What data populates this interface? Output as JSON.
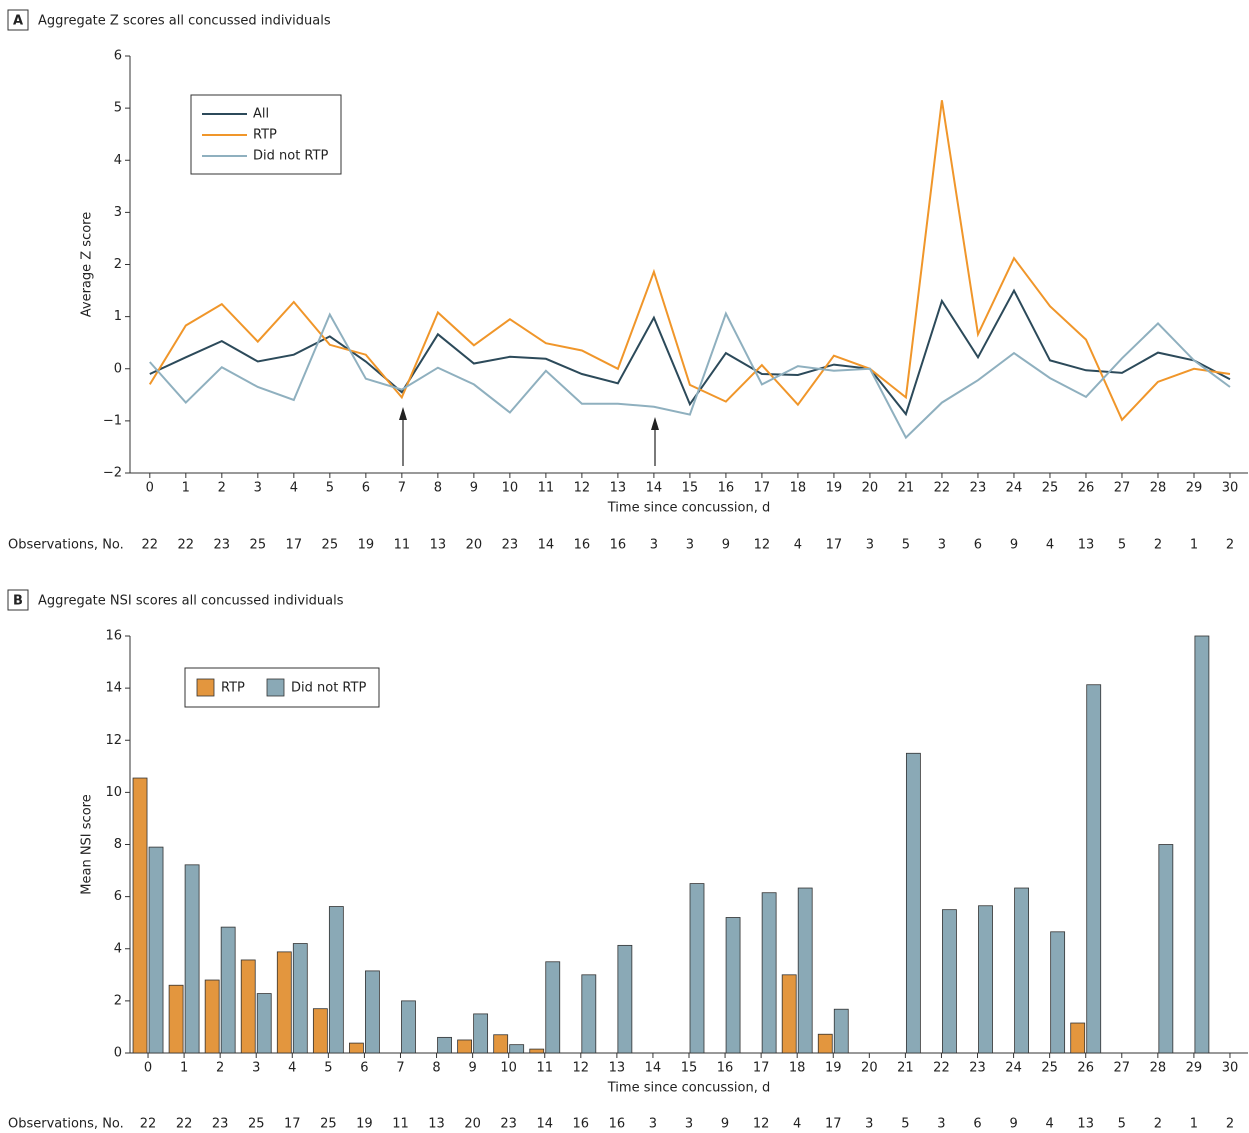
{
  "chart_data": [
    {
      "type": "line",
      "panel": "A",
      "title": "Aggregate Z scores all concussed individuals",
      "ylabel": "Average Z score",
      "xlabel": "Time since concussion, d",
      "x": [
        0,
        1,
        2,
        3,
        4,
        5,
        6,
        7,
        8,
        9,
        10,
        11,
        12,
        13,
        14,
        15,
        16,
        17,
        18,
        19,
        20,
        21,
        22,
        23,
        24,
        25,
        26,
        27,
        28,
        29,
        30
      ],
      "xlim": [
        -0.55,
        30.5
      ],
      "xticks": [
        0,
        1,
        2,
        3,
        4,
        5,
        6,
        7,
        8,
        9,
        10,
        11,
        12,
        13,
        14,
        15,
        16,
        17,
        18,
        19,
        20,
        21,
        22,
        23,
        24,
        25,
        26,
        27,
        28,
        29,
        30
      ],
      "ylim": [
        -2,
        6
      ],
      "yticks": [
        {
          "value": -2,
          "label": "−2"
        },
        {
          "value": -1,
          "label": "−1"
        },
        0,
        1,
        2,
        3,
        4,
        5,
        6
      ],
      "series": [
        {
          "name": "All",
          "color": "#2c4a5a",
          "values": [
            -0.1,
            0.22,
            0.53,
            0.14,
            0.27,
            0.62,
            0.14,
            -0.45,
            0.66,
            0.1,
            0.23,
            0.19,
            -0.1,
            -0.28,
            0.98,
            -0.68,
            0.3,
            -0.1,
            -0.12,
            0.08,
            0.0,
            -0.87,
            1.3,
            0.22,
            1.5,
            0.16,
            -0.03,
            -0.08,
            0.31,
            0.16,
            -0.2
          ]
        },
        {
          "name": "RTP",
          "color": "#f0962a",
          "values": [
            -0.3,
            0.83,
            1.24,
            0.52,
            1.28,
            0.46,
            0.27,
            -0.55,
            1.08,
            0.45,
            0.95,
            0.49,
            0.35,
            0.0,
            1.86,
            -0.31,
            -0.63,
            0.07,
            -0.69,
            0.25,
            0.0,
            -0.55,
            5.15,
            0.66,
            2.12,
            1.2,
            0.56,
            -0.98,
            -0.25,
            0.0,
            -0.1
          ]
        },
        {
          "name": "Did not RTP",
          "color": "#8fb0bf",
          "values": [
            0.13,
            -0.65,
            0.03,
            -0.35,
            -0.6,
            1.04,
            -0.19,
            -0.4,
            0.02,
            -0.3,
            -0.84,
            -0.04,
            -0.67,
            -0.67,
            -0.73,
            -0.88,
            1.06,
            -0.3,
            0.05,
            -0.04,
            0.0,
            -1.32,
            -0.65,
            -0.22,
            0.3,
            -0.18,
            -0.54,
            0.2,
            0.87,
            0.16,
            -0.35
          ]
        }
      ],
      "observations": {
        "label": "Observations, No.",
        "values": [
          22,
          22,
          23,
          25,
          17,
          25,
          19,
          11,
          13,
          20,
          23,
          14,
          16,
          16,
          3,
          3,
          9,
          12,
          4,
          17,
          3,
          5,
          3,
          6,
          9,
          4,
          13,
          5,
          2,
          1,
          2
        ]
      }
    },
    {
      "type": "bar",
      "panel": "B",
      "title": "Aggregate NSI scores all concussed individuals",
      "ylabel": "Mean NSI score",
      "xlabel": "Time since concussion, d",
      "categories": [
        0,
        1,
        2,
        3,
        4,
        5,
        6,
        7,
        8,
        9,
        10,
        11,
        12,
        13,
        14,
        15,
        16,
        17,
        18,
        19,
        20,
        21,
        22,
        23,
        24,
        25,
        26,
        27,
        28,
        29,
        30
      ],
      "ylim": [
        0,
        16
      ],
      "yticks": [
        0,
        2,
        4,
        6,
        8,
        10,
        12,
        14,
        16
      ],
      "series": [
        {
          "name": "RTP",
          "color": "#e3963e",
          "values": [
            10.55,
            2.6,
            2.8,
            3.57,
            3.88,
            1.7,
            0.38,
            0,
            0,
            0.5,
            0.7,
            0.15,
            0,
            0,
            0,
            0,
            0,
            0,
            3.0,
            0.72,
            0,
            0,
            0,
            0,
            0,
            0,
            1.15,
            0,
            0,
            0,
            0
          ]
        },
        {
          "name": "Did not RTP",
          "color": "#8aa9b6",
          "values": [
            7.9,
            7.22,
            4.83,
            2.28,
            4.2,
            5.62,
            3.15,
            2.0,
            0.6,
            1.5,
            0.32,
            3.5,
            3.0,
            4.13,
            0,
            6.5,
            5.2,
            6.15,
            6.33,
            1.68,
            0,
            11.5,
            5.5,
            5.65,
            6.33,
            4.65,
            14.13,
            0,
            8.0,
            16.0,
            0
          ]
        }
      ],
      "observations": {
        "label": "Observations, No.",
        "values": [
          22,
          22,
          23,
          25,
          17,
          25,
          19,
          11,
          13,
          20,
          23,
          14,
          16,
          16,
          3,
          3,
          9,
          12,
          4,
          17,
          3,
          5,
          3,
          6,
          9,
          4,
          13,
          5,
          2,
          1,
          2
        ]
      }
    }
  ]
}
